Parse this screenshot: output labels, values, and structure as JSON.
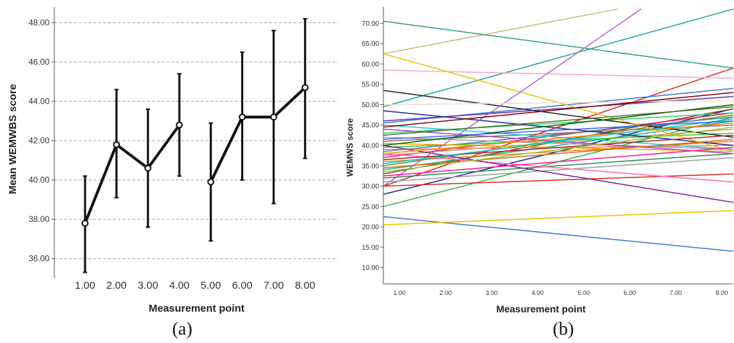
{
  "chart_data": [
    {
      "type": "line",
      "panel": "a",
      "caption": "(a)",
      "title": "",
      "xlabel": "Measurement point",
      "ylabel": "Mean WEMWBS score",
      "x_ticks": [
        "1.00",
        "2.00",
        "3.00",
        "4.00",
        "5.00",
        "6.00",
        "7.00",
        "8.00"
      ],
      "y_ticks": [
        "36.00",
        "38.00",
        "40.00",
        "42.00",
        "44.00",
        "46.00",
        "48.00"
      ],
      "ylim": [
        35.0,
        48.8
      ],
      "grid": "horizontal dashed",
      "series": [
        {
          "x": [
            1,
            2,
            3,
            4,
            5,
            6,
            7,
            8
          ],
          "values": [
            37.8,
            41.8,
            40.6,
            42.8,
            39.9,
            43.2,
            43.2,
            44.7
          ],
          "lower": [
            35.3,
            39.1,
            37.6,
            40.2,
            36.9,
            40.0,
            38.8,
            41.1
          ],
          "upper": [
            40.2,
            44.6,
            43.6,
            45.4,
            42.9,
            46.5,
            47.6,
            48.2
          ],
          "segments": [
            [
              1,
              2,
              3,
              4
            ],
            [
              5,
              6,
              7,
              8
            ]
          ]
        }
      ],
      "colors": {
        "line": "#111111",
        "grid": "#a0a0a0"
      }
    },
    {
      "type": "line",
      "panel": "b",
      "caption": "(b)",
      "title": "",
      "xlabel": "Measurement point",
      "ylabel": "WEMWS score",
      "x_ticks": [
        "1.00",
        "2.00",
        "3.00",
        "4.00",
        "5.00",
        "6.00",
        "7.00",
        "8.00"
      ],
      "y_ticks": [
        "10.00",
        "15.00",
        "20.00",
        "25.00",
        "30.00",
        "35.00",
        "40.00",
        "45.00",
        "50.00",
        "55.00",
        "60.00",
        "65.00",
        "70.00"
      ],
      "xlim": [
        0.65,
        8.25
      ],
      "ylim": [
        6.0,
        74.0
      ],
      "grid": "none",
      "series": [
        {
          "x": [
            0.65,
            8.25
          ],
          "values": [
            22.5,
            14.0
          ],
          "color": "#3b78d8"
        },
        {
          "x": [
            0.65,
            8.25
          ],
          "values": [
            20.5,
            24.0
          ],
          "color": "#e6c200"
        },
        {
          "x": [
            0.65,
            8.25
          ],
          "values": [
            25.0,
            47.0
          ],
          "color": "#39b54a"
        },
        {
          "x": [
            0.65,
            8.25
          ],
          "values": [
            28.0,
            49.0
          ],
          "color": "#1f2e8c"
        },
        {
          "x": [
            0.65,
            8.25
          ],
          "values": [
            30.0,
            59.0
          ],
          "color": "#d62d20"
        },
        {
          "x": [
            0.65,
            8.25
          ],
          "values": [
            30.0,
            33.0
          ],
          "color": "#d62d20"
        },
        {
          "x": [
            0.65,
            8.25
          ],
          "values": [
            31.0,
            37.0
          ],
          "color": "#9e9e9e"
        },
        {
          "x": [
            0.65,
            8.25
          ],
          "values": [
            32.0,
            38.0
          ],
          "color": "#2e8b57"
        },
        {
          "x": [
            0.65,
            8.25
          ],
          "values": [
            33.0,
            49.0
          ],
          "color": "#8b4513"
        },
        {
          "x": [
            0.65,
            8.25
          ],
          "values": [
            34.0,
            46.0
          ],
          "color": "#20b2aa"
        },
        {
          "x": [
            0.65,
            8.25
          ],
          "values": [
            35.0,
            47.5
          ],
          "color": "#6b8e23"
        },
        {
          "x": [
            0.65,
            8.25
          ],
          "values": [
            36.0,
            41.0
          ],
          "color": "#e67e22"
        },
        {
          "x": [
            0.65,
            8.25
          ],
          "values": [
            37.0,
            48.0
          ],
          "color": "#e91e63"
        },
        {
          "x": [
            0.65,
            8.25
          ],
          "values": [
            37.5,
            44.0
          ],
          "color": "#c49a6c"
        },
        {
          "x": [
            0.65,
            8.25
          ],
          "values": [
            38.0,
            31.0
          ],
          "color": "#ff69b4"
        },
        {
          "x": [
            0.65,
            8.25
          ],
          "values": [
            38.5,
            47.0
          ],
          "color": "#4682b4"
        },
        {
          "x": [
            0.65,
            8.25
          ],
          "values": [
            39.0,
            40.0
          ],
          "color": "#f08080"
        },
        {
          "x": [
            0.65,
            8.25
          ],
          "values": [
            39.5,
            43.0
          ],
          "color": "#32cd32"
        },
        {
          "x": [
            0.65,
            8.25
          ],
          "values": [
            40.0,
            26.0
          ],
          "color": "#7b1fa2"
        },
        {
          "x": [
            0.65,
            8.25
          ],
          "values": [
            40.5,
            38.5
          ],
          "color": "#f4a300"
        },
        {
          "x": [
            0.65,
            8.25
          ],
          "values": [
            41.0,
            45.0
          ],
          "color": "#8d6e63"
        },
        {
          "x": [
            0.65,
            8.25
          ],
          "values": [
            42.0,
            39.0
          ],
          "color": "#9e9e9e"
        },
        {
          "x": [
            0.65,
            8.25
          ],
          "values": [
            43.0,
            48.0
          ],
          "color": "#2ecc71"
        },
        {
          "x": [
            0.65,
            8.25
          ],
          "values": [
            44.0,
            38.0
          ],
          "color": "#ab47bc"
        },
        {
          "x": [
            0.65,
            8.25
          ],
          "values": [
            45.0,
            39.0
          ],
          "color": "#26c6da"
        },
        {
          "x": [
            0.65,
            8.25
          ],
          "values": [
            45.5,
            54.0
          ],
          "color": "#3b78d8"
        },
        {
          "x": [
            0.65,
            8.25
          ],
          "values": [
            46.0,
            52.0
          ],
          "color": "#5e35b1"
        },
        {
          "x": [
            0.65,
            8.25
          ],
          "values": [
            48.5,
            40.0
          ],
          "color": "#1f2e8c"
        },
        {
          "x": [
            0.65,
            8.25
          ],
          "values": [
            49.5,
            73.5
          ],
          "color": "#1aa79c"
        },
        {
          "x": [
            0.65,
            8.25
          ],
          "values": [
            53.5,
            42.0
          ],
          "color": "#222222"
        },
        {
          "x": [
            0.65,
            8.25
          ],
          "values": [
            58.5,
            56.5
          ],
          "color": "#f7a8c8"
        },
        {
          "x": [
            0.65,
            8.25
          ],
          "values": [
            62.5,
            38.5
          ],
          "color": "#e6c200"
        },
        {
          "x": [
            0.65,
            5.75
          ],
          "values": [
            62.5,
            73.5
          ],
          "color": "#c9b87a"
        },
        {
          "x": [
            0.65,
            8.25
          ],
          "values": [
            70.5,
            59.0
          ],
          "color": "#2fa56e"
        },
        {
          "x": [
            0.65,
            6.25
          ],
          "values": [
            30.0,
            73.5
          ],
          "color": "#b65fd6"
        },
        {
          "x": [
            0.65,
            8.25
          ],
          "values": [
            50.0,
            51.0
          ],
          "color": "#e8e2c8"
        },
        {
          "x": [
            0.65,
            8.25
          ],
          "values": [
            44.5,
            53.0
          ],
          "color": "#8b0000"
        },
        {
          "x": [
            0.65,
            8.25
          ],
          "values": [
            40.0,
            50.0
          ],
          "color": "#006400"
        },
        {
          "x": [
            0.65,
            8.25
          ],
          "values": [
            38.0,
            45.5
          ],
          "color": "#ff8c00"
        },
        {
          "x": [
            0.65,
            8.25
          ],
          "values": [
            36.5,
            42.5
          ],
          "color": "#b22222"
        },
        {
          "x": [
            0.65,
            8.25
          ],
          "values": [
            35.5,
            46.5
          ],
          "color": "#00ced1"
        },
        {
          "x": [
            0.65,
            8.25
          ],
          "values": [
            34.5,
            41.5
          ],
          "color": "#d2691e"
        },
        {
          "x": [
            0.65,
            8.25
          ],
          "values": [
            33.5,
            44.5
          ],
          "color": "#9acd32"
        },
        {
          "x": [
            0.65,
            8.25
          ],
          "values": [
            32.5,
            39.5
          ],
          "color": "#ff1493"
        },
        {
          "x": [
            0.65,
            8.25
          ],
          "values": [
            41.5,
            46.0
          ],
          "color": "#4169e1"
        },
        {
          "x": [
            0.65,
            8.25
          ],
          "values": [
            42.5,
            49.5
          ],
          "color": "#556b2f"
        }
      ]
    }
  ]
}
